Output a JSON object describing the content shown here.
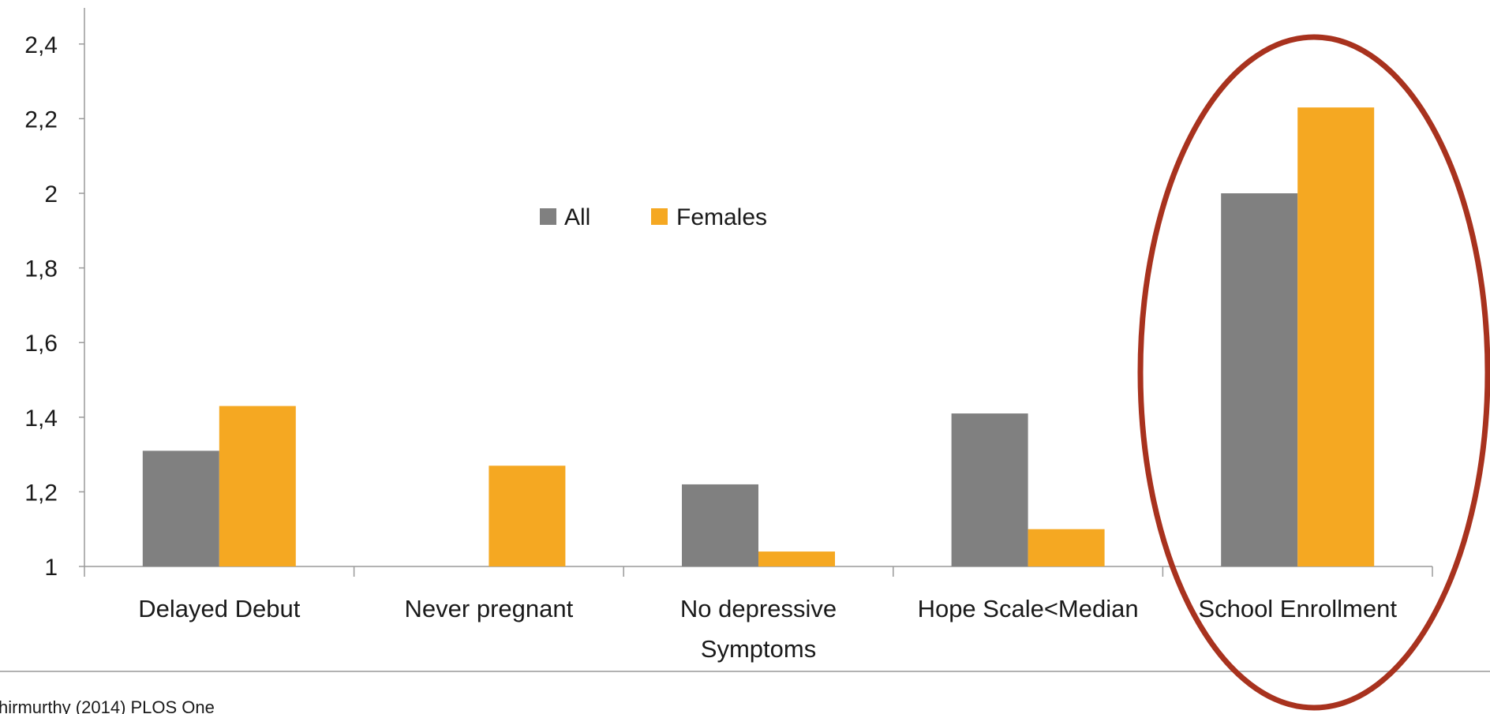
{
  "chart_data": {
    "type": "bar",
    "categories": [
      [
        "Delayed Debut"
      ],
      [
        "Never pregnant"
      ],
      [
        "No depressive",
        "Symptoms"
      ],
      [
        "Hope Scale<Median"
      ],
      [
        "School Enrollment"
      ]
    ],
    "series": [
      {
        "name": "All",
        "color": "#808080",
        "values": [
          1.31,
          null,
          1.22,
          1.41,
          2.0
        ]
      },
      {
        "name": "Females",
        "color": "#F5A822",
        "values": [
          1.43,
          1.27,
          1.04,
          1.1,
          2.23
        ]
      }
    ],
    "ylim": [
      1,
      2.5
    ],
    "yticks": [
      "1",
      "1,2",
      "1,4",
      "1,6",
      "1,8",
      "2",
      "2,2",
      "2,4"
    ],
    "ytick_values": [
      1,
      1.2,
      1.4,
      1.6,
      1.8,
      2.0,
      2.2,
      2.4
    ],
    "title": "",
    "xlabel": "",
    "ylabel": "",
    "grid": false,
    "legend": "top-center",
    "highlight": {
      "category": "School Enrollment",
      "shape": "ellipse",
      "color": "#A8321E"
    }
  },
  "source": "hirmurthy (2014) PLOS One"
}
